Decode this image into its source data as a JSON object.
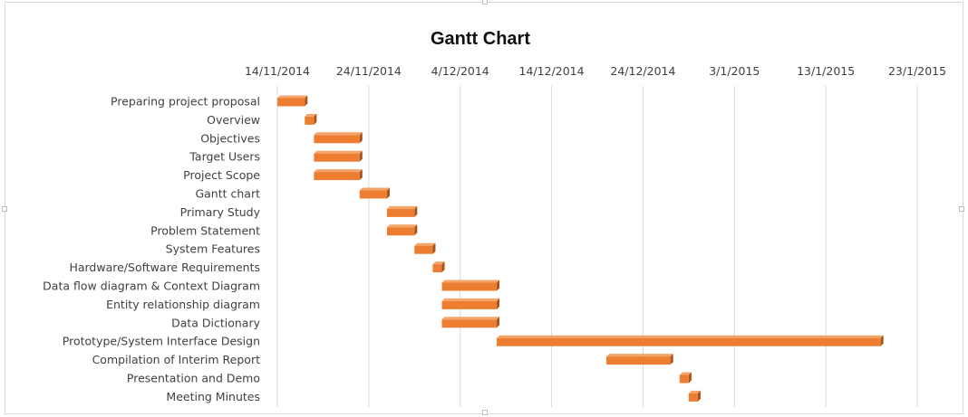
{
  "chart_data": {
    "type": "bar",
    "orientation": "horizontal",
    "subtype": "gantt",
    "title": "Gantt Chart",
    "x_axis": {
      "position": "top",
      "tick_labels": [
        "14/11/2014",
        "24/11/2014",
        "4/12/2014",
        "14/12/2014",
        "24/12/2014",
        "3/1/2015",
        "13/1/2015",
        "23/1/2015"
      ],
      "range": [
        "2014-11-14",
        "2015-01-23"
      ],
      "grid": true
    },
    "tasks": [
      {
        "name": "Preparing project proposal",
        "start": "2014-11-14",
        "end": "2014-11-17"
      },
      {
        "name": "Overview",
        "start": "2014-11-17",
        "end": "2014-11-18"
      },
      {
        "name": "Objectives",
        "start": "2014-11-18",
        "end": "2014-11-23"
      },
      {
        "name": "Target Users",
        "start": "2014-11-18",
        "end": "2014-11-23"
      },
      {
        "name": "Project Scope",
        "start": "2014-11-18",
        "end": "2014-11-23"
      },
      {
        "name": "Gantt chart",
        "start": "2014-11-23",
        "end": "2014-11-26"
      },
      {
        "name": "Primary Study",
        "start": "2014-11-26",
        "end": "2014-11-29"
      },
      {
        "name": "Problem Statement",
        "start": "2014-11-26",
        "end": "2014-11-29"
      },
      {
        "name": "System Features",
        "start": "2014-11-29",
        "end": "2014-12-01"
      },
      {
        "name": "Hardware/Software Requirements",
        "start": "2014-12-01",
        "end": "2014-12-02"
      },
      {
        "name": "Data flow diagram & Context Diagram",
        "start": "2014-12-02",
        "end": "2014-12-08"
      },
      {
        "name": "Entity relationship diagram",
        "start": "2014-12-02",
        "end": "2014-12-08"
      },
      {
        "name": "Data Dictionary",
        "start": "2014-12-02",
        "end": "2014-12-08"
      },
      {
        "name": "Prototype/System Interface Design",
        "start": "2014-12-08",
        "end": "2015-01-19"
      },
      {
        "name": "Compilation of Interim Report",
        "start": "2014-12-20",
        "end": "2014-12-27"
      },
      {
        "name": "Presentation and Demo",
        "start": "2014-12-28",
        "end": "2014-12-29"
      },
      {
        "name": "Meeting Minutes",
        "start": "2014-12-29",
        "end": "2014-12-30"
      }
    ],
    "bar_color": "#ed7d31"
  }
}
